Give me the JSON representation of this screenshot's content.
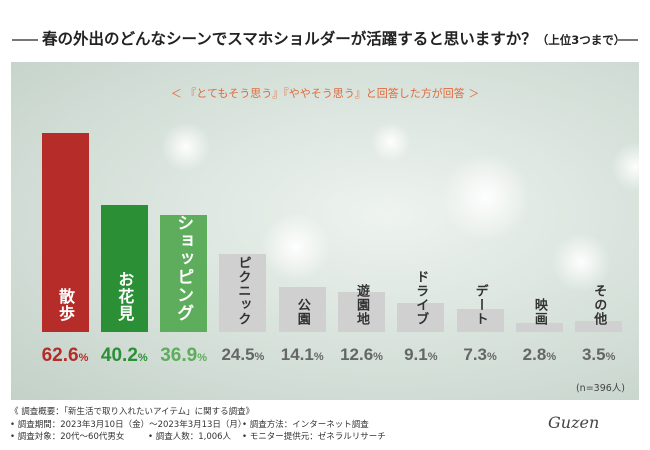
{
  "title": {
    "main": "春の外出のどんなシーンでスマホショルダーが活躍すると思いますか？",
    "suffix": "（上位3つまで）"
  },
  "subtitle": "＜ 『とてもそう思う』『ややそう思う』と回答した方が回答 ＞",
  "chart_data": {
    "type": "bar",
    "categories": [
      "散歩",
      "お花見",
      "ショッピング",
      "ピクニック",
      "公園",
      "遊園地",
      "ドライブ",
      "デート",
      "映画",
      "その他"
    ],
    "values": [
      62.6,
      40.2,
      36.9,
      24.5,
      14.1,
      12.6,
      9.1,
      7.3,
      2.8,
      3.5
    ],
    "value_labels": [
      "62.6",
      "40.2",
      "36.9",
      "24.5",
      "14.1",
      "12.6",
      "9.1",
      "7.3",
      "2.8",
      "3.5"
    ],
    "unit": "%",
    "ylim": [
      0,
      70
    ],
    "bar_colors": [
      "#b52c29",
      "#2b8f35",
      "#5ead5c",
      "#d0d0d0",
      "#d0d0d0",
      "#d0d0d0",
      "#d0d0d0",
      "#d0d0d0",
      "#d0d0d0",
      "#d0d0d0"
    ],
    "label_colors": [
      "#ffffff",
      "#ffffff",
      "#ffffff",
      "#333333",
      "#333333",
      "#333333",
      "#333333",
      "#333333",
      "#333333",
      "#333333"
    ],
    "value_colors": [
      "#b52c29",
      "#2b8f35",
      "#5ead5c",
      "#666666",
      "#666666",
      "#666666",
      "#666666",
      "#666666",
      "#666666",
      "#666666"
    ]
  },
  "sample_note": "(n=396人)",
  "footer": {
    "heading": "《 調査概要：「新生活で取り入れたいアイテム」に関する調査》",
    "period": "• 調査期間：2023年3月10日（金）〜2023年3月13日（月）",
    "method": "• 調査方法：インターネット調査",
    "target": "• 調査対象：20代〜60代男女",
    "count": "• 調査人数：1,006人",
    "provider": "• モニター提供元：ゼネラルリサーチ"
  },
  "logo": "Guzen"
}
